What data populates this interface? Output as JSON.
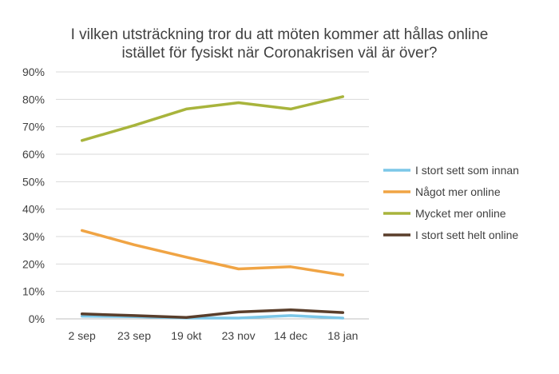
{
  "chart_data": {
    "type": "line",
    "title_lines": [
      "I vilken utsträckning tror du att möten kommer att hållas online",
      "istället för fysiskt när Coronakrisen väl är över?"
    ],
    "categories": [
      "2 sep",
      "23 sep",
      "19 okt",
      "23 nov",
      "14 dec",
      "18 jan"
    ],
    "y_ticks": [
      "0%",
      "10%",
      "20%",
      "30%",
      "40%",
      "50%",
      "60%",
      "70%",
      "80%",
      "90%"
    ],
    "ylim": [
      0,
      90
    ],
    "grid": true,
    "legend_position": "right",
    "series": [
      {
        "name": "I stort sett som innan",
        "color": "#7cc7e8",
        "values": [
          1.0,
          0.8,
          0.3,
          0.3,
          1.2,
          0.3
        ]
      },
      {
        "name": "Något mer online",
        "color": "#f0a444",
        "values": [
          32.2,
          27.0,
          22.5,
          18.2,
          19.0,
          16.0
        ]
      },
      {
        "name": "Mycket mer online",
        "color": "#a8b43c",
        "values": [
          65.0,
          70.5,
          76.5,
          78.8,
          76.5,
          81.0
        ]
      },
      {
        "name": "I stort sett helt online",
        "color": "#5a3e2b",
        "values": [
          1.8,
          1.2,
          0.5,
          2.5,
          3.3,
          2.3
        ]
      }
    ]
  }
}
